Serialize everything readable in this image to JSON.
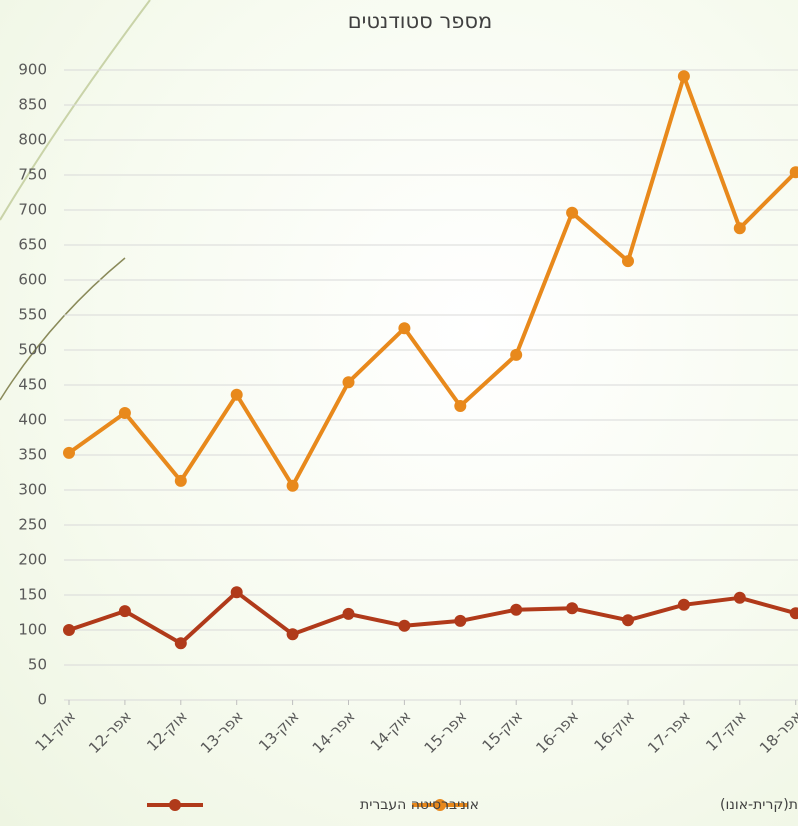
{
  "chart_data": {
    "type": "line",
    "title": "מספר סטודנטים",
    "categories": [
      "אוק-11",
      "אפר-12",
      "אוק-12",
      "אפר-13",
      "אוק-13",
      "אפר-14",
      "אוק-14",
      "אפר-15",
      "אוק-15",
      "אפר-16",
      "אוק-16",
      "אפר-17",
      "אוק-17",
      "אפר-18"
    ],
    "series": [
      {
        "name": "הקריה האקדמית(קרית-אונו)",
        "color": "#e8891c",
        "values": [
          353,
          410,
          313,
          436,
          306,
          454,
          531,
          420,
          493,
          696,
          627,
          891,
          674,
          754
        ]
      },
      {
        "name": "אוניברסיטה העברית",
        "color": "#b03a1a",
        "values": [
          100,
          127,
          81,
          154,
          94,
          123,
          106,
          113,
          129,
          131,
          114,
          136,
          146,
          124
        ]
      }
    ],
    "ylim": [
      0,
      900
    ],
    "yticks": [
      0,
      50,
      100,
      150,
      200,
      250,
      300,
      350,
      400,
      450,
      500,
      550,
      600,
      650,
      700,
      750,
      800,
      850,
      900
    ],
    "grid": true,
    "legend": "bottom"
  }
}
